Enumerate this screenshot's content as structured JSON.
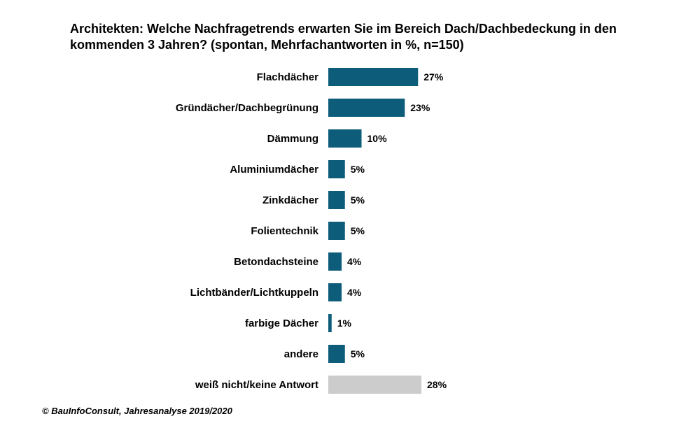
{
  "chart_data": {
    "type": "bar",
    "orientation": "horizontal",
    "title": "Architekten: Welche Nachfragetrends erwarten Sie im Bereich Dach/Dachbedeckung  in den kommenden  3 Jahren? (spontan, Mehrfachantworten in %, n=150)",
    "categories": [
      "Flachdächer",
      "Gründächer/Dachbegrünung",
      "Dämmung",
      "Aluminiumdächer",
      "Zinkdächer",
      "Folientechnik",
      "Betondachsteine",
      "Lichtbänder/Lichtkuppeln",
      "farbige Dächer",
      "andere",
      "weiß nicht/keine Antwort"
    ],
    "values": [
      27,
      23,
      10,
      5,
      5,
      5,
      4,
      4,
      1,
      5,
      28
    ],
    "value_labels": [
      "27%",
      "23%",
      "10%",
      "5%",
      "5%",
      "5%",
      "4%",
      "4%",
      "1%",
      "5%",
      "28%"
    ],
    "bar_colors": [
      "#0d5c7a",
      "#0d5c7a",
      "#0d5c7a",
      "#0d5c7a",
      "#0d5c7a",
      "#0d5c7a",
      "#0d5c7a",
      "#0d5c7a",
      "#0d5c7a",
      "#0d5c7a",
      "#cccccc"
    ],
    "xlabel": "",
    "ylabel": "",
    "xlim": [
      0,
      28
    ],
    "grid": false,
    "legend": "none"
  },
  "footer": {
    "source": "© BauInfoConsult, Jahresanalyse 2019/2020"
  }
}
